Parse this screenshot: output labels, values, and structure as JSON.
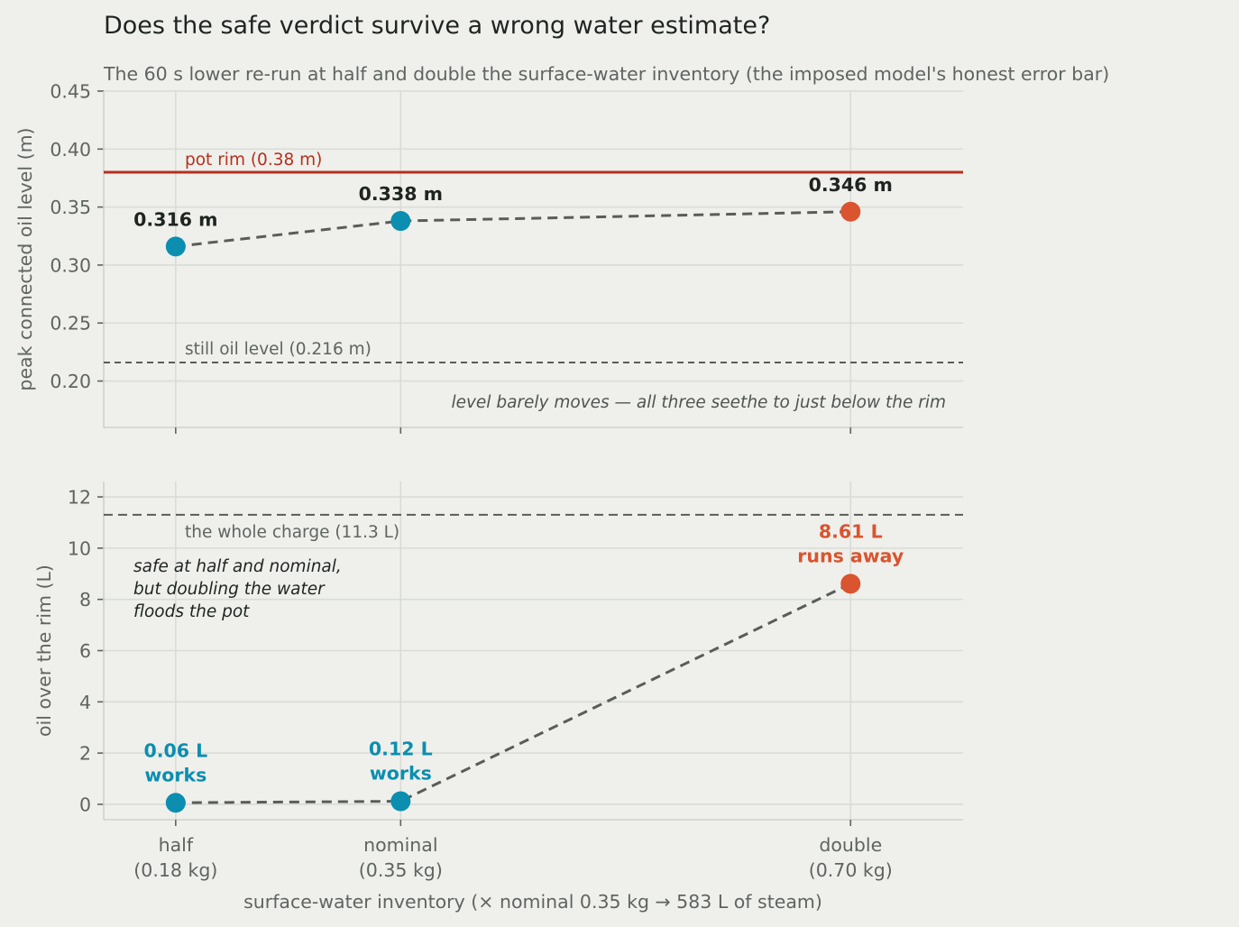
{
  "chart_data": {
    "title": "Does the safe verdict survive a wrong water estimate?",
    "subtitle": "The 60 s lower re-run at half and double the surface-water inventory (the imposed model's honest error bar)",
    "xlabel": "surface-water inventory  (× nominal 0.35 kg → 583 L of steam)",
    "categories": [
      {
        "label": "half",
        "sub": "(0.18 kg)",
        "x": 0.5
      },
      {
        "label": "nominal",
        "sub": "(0.35 kg)",
        "x": 1.0
      },
      {
        "label": "double",
        "sub": "(0.70 kg)",
        "x": 2.0
      }
    ],
    "xlim": [
      0.34,
      2.25
    ],
    "colors": {
      "safe": "#0b8eb0",
      "fail": "#d9542f",
      "rim": "#b5301e",
      "dash": "#5a5c5a",
      "text": "#1f2421",
      "muted": "#5f6461"
    },
    "panels": [
      {
        "type": "line",
        "ylabel": "peak connected oil level  (m)",
        "ylim": [
          0.16,
          0.45
        ],
        "yticks": [
          "0.20",
          "0.25",
          "0.30",
          "0.35",
          "0.40",
          "0.45"
        ],
        "values": [
          0.316,
          0.338,
          0.346
        ],
        "labels": [
          "0.316 m",
          "0.338 m",
          "0.346 m"
        ],
        "status": [
          "safe",
          "safe",
          "fail"
        ],
        "reflines": [
          {
            "y": 0.38,
            "label": "pot rim (0.38 m)",
            "style": "rim"
          },
          {
            "y": 0.216,
            "label": "still oil level (0.216 m)",
            "style": "dash"
          }
        ],
        "annotation": [
          "level barely moves — all three seethe to just below the rim"
        ]
      },
      {
        "type": "line",
        "ylabel": "oil over the rim  (L)",
        "ylim": [
          -0.6,
          12.6
        ],
        "yticks": [
          "0",
          "2",
          "4",
          "6",
          "8",
          "10",
          "12"
        ],
        "values": [
          0.06,
          0.12,
          8.61
        ],
        "labels": [
          "0.06 L\nworks",
          "0.12 L\nworks",
          "8.61 L\nruns away"
        ],
        "status": [
          "safe",
          "safe",
          "fail"
        ],
        "reflines": [
          {
            "y": 11.3,
            "label": "the whole charge (11.3 L)",
            "style": "dash"
          }
        ],
        "annotation": [
          "safe at half and nominal,",
          "but doubling the water",
          "floods the pot"
        ]
      }
    ]
  }
}
